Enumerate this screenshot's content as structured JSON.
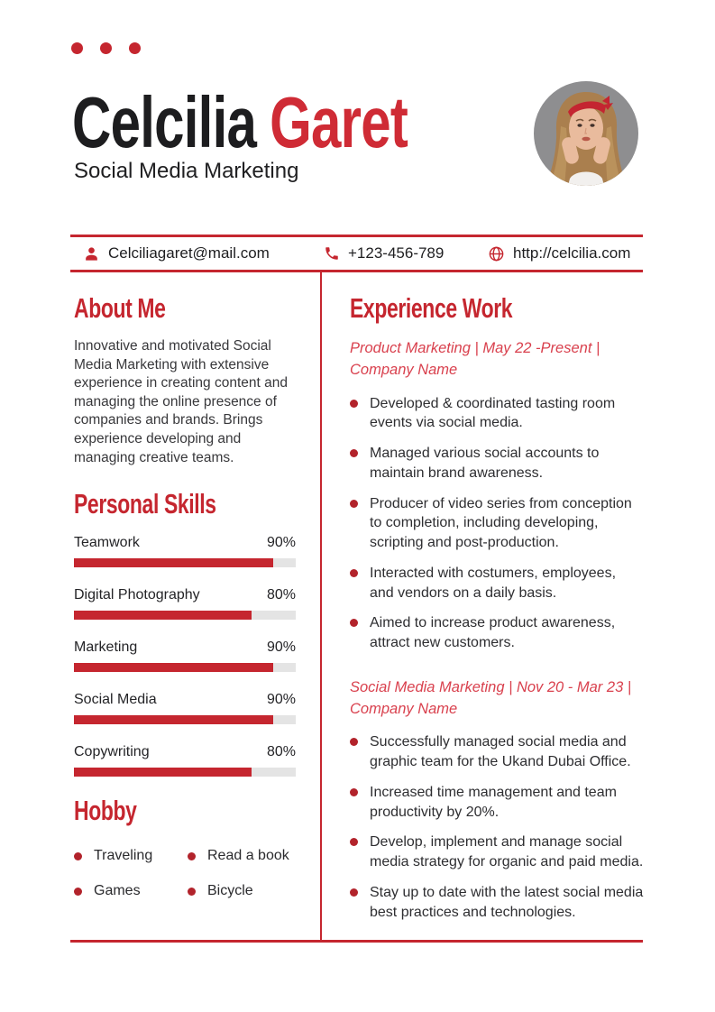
{
  "header": {
    "first_name": "Celcilia",
    "last_name": "Garet",
    "subtitle": "Social Media Marketing"
  },
  "contact": {
    "email": {
      "icon": "person-icon",
      "value": "Celciliagaret@mail.com"
    },
    "phone": {
      "icon": "phone-icon",
      "value": "+123-456-789"
    },
    "website": {
      "icon": "globe-icon",
      "value": "http://celcilia.com"
    }
  },
  "about": {
    "heading": "About Me",
    "text": "Innovative and motivated Social Media Marketing with extensive experience in creating content and managing the online presence of companies and brands. Brings experience developing and managing creative teams."
  },
  "skills": {
    "heading": "Personal Skills",
    "items": [
      {
        "label": "Teamwork",
        "percent": 90,
        "percent_label": "90%"
      },
      {
        "label": "Digital Photography",
        "percent": 80,
        "percent_label": "80%"
      },
      {
        "label": "Marketing",
        "percent": 90,
        "percent_label": "90%"
      },
      {
        "label": "Social Media",
        "percent": 90,
        "percent_label": "90%"
      },
      {
        "label": "Copywriting",
        "percent": 80,
        "percent_label": "80%"
      }
    ]
  },
  "hobby": {
    "heading": "Hobby",
    "items": [
      "Traveling",
      "Read a book",
      "Games",
      "Bicycle"
    ]
  },
  "experience": {
    "heading": "Experience Work",
    "jobs": [
      {
        "title": "Product Marketing | May 22 -Present | Company Name",
        "bullets": [
          "Developed & coordinated tasting room events via social media.",
          "Managed various social accounts to maintain brand awareness.",
          "Producer of video series from conception to completion, including developing, scripting and post-production.",
          "Interacted with costumers, employees, and vendors on a daily basis.",
          "Aimed to increase product awareness, attract new customers."
        ]
      },
      {
        "title": "Social Media Marketing | Nov 20 - Mar 23 | Company Name",
        "bullets": [
          "Successfully managed social media and graphic team for the Ukand Dubai Office.",
          "Increased time management and team productivity by 20%.",
          "Develop, implement and manage social media strategy for organic and paid media.",
          "Stay up to date with the latest social media best practices and technologies."
        ]
      }
    ]
  },
  "colors": {
    "accent-red": "#c5262f",
    "name-red": "#cf2b35",
    "job-title-red": "#d9414e",
    "bullet-red": "#b2232b",
    "track-gray": "#e4e4e4",
    "text-dark": "#1d1d1f",
    "text-body": "#38383b",
    "avatar-bg": "#8e8e90"
  }
}
